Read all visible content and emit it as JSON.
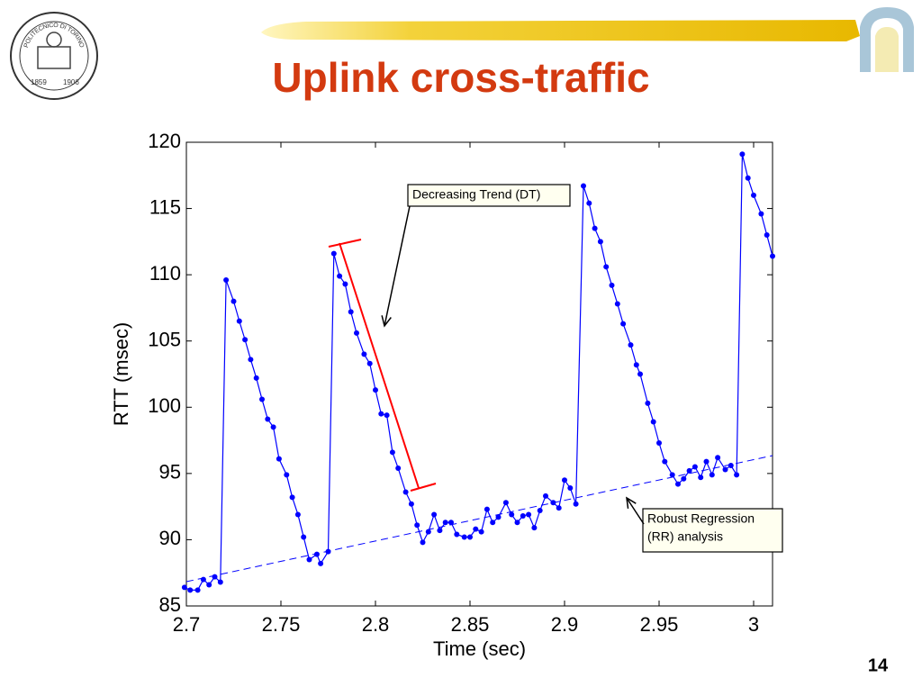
{
  "header": {
    "title": "Uplink cross-traffic",
    "logo_name": "POLITECNICO DI TORINO",
    "logo_years": [
      "1859",
      "1906"
    ]
  },
  "page_number": "14",
  "chart_data": {
    "type": "line",
    "xlabel": "Time (sec)",
    "ylabel": "RTT (msec)",
    "xlim": [
      2.7,
      3.01
    ],
    "ylim": [
      85,
      120
    ],
    "xticks": [
      2.7,
      2.75,
      2.8,
      2.85,
      2.9,
      2.95,
      3
    ],
    "yticks": [
      85,
      90,
      95,
      100,
      105,
      110,
      115,
      120
    ],
    "x": [
      2.699,
      2.702,
      2.706,
      2.709,
      2.712,
      2.715,
      2.718,
      2.721,
      2.725,
      2.728,
      2.731,
      2.734,
      2.737,
      2.74,
      2.743,
      2.746,
      2.749,
      2.753,
      2.756,
      2.759,
      2.762,
      2.765,
      2.769,
      2.771,
      2.775,
      2.778,
      2.781,
      2.784,
      2.787,
      2.79,
      2.794,
      2.797,
      2.8,
      2.803,
      2.806,
      2.809,
      2.812,
      2.816,
      2.819,
      2.822,
      2.825,
      2.828,
      2.831,
      2.834,
      2.837,
      2.84,
      2.843,
      2.847,
      2.85,
      2.853,
      2.856,
      2.859,
      2.862,
      2.865,
      2.869,
      2.872,
      2.875,
      2.878,
      2.881,
      2.884,
      2.887,
      2.89,
      2.894,
      2.897,
      2.9,
      2.903,
      2.906,
      2.91,
      2.913,
      2.916,
      2.919,
      2.922,
      2.925,
      2.928,
      2.931,
      2.935,
      2.938,
      2.94,
      2.944,
      2.947,
      2.95,
      2.953,
      2.957,
      2.96,
      2.963,
      2.966,
      2.969,
      2.972,
      2.975,
      2.978,
      2.981,
      2.985,
      2.988,
      2.991,
      2.994,
      2.997,
      3.0,
      3.004,
      3.007,
      3.01
    ],
    "series": [
      {
        "color": "#0000ff",
        "values": [
          86.4,
          86.2,
          86.2,
          87.0,
          86.6,
          87.2,
          86.8,
          109.6,
          108.0,
          106.5,
          105.1,
          103.6,
          102.2,
          100.6,
          99.1,
          98.5,
          96.1,
          94.9,
          93.2,
          91.9,
          90.2,
          88.5,
          88.9,
          88.2,
          89.1,
          111.6,
          109.9,
          109.3,
          107.2,
          105.6,
          104.0,
          103.3,
          101.3,
          99.5,
          99.4,
          96.6,
          95.4,
          93.6,
          92.7,
          91.1,
          89.8,
          90.6,
          91.9,
          90.7,
          91.3,
          91.3,
          90.4,
          90.2,
          90.2,
          90.8,
          90.6,
          92.3,
          91.3,
          91.7,
          92.8,
          91.9,
          91.3,
          91.8,
          91.9,
          90.9,
          92.2,
          93.3,
          92.8,
          92.4,
          94.5,
          93.9,
          92.7,
          116.7,
          115.4,
          113.5,
          112.5,
          110.6,
          109.2,
          107.8,
          106.3,
          104.7,
          103.2,
          102.5,
          100.3,
          98.9,
          97.3,
          95.9,
          94.9,
          94.2,
          94.6,
          95.2,
          95.5,
          94.7,
          95.9,
          94.9,
          96.2,
          95.3,
          95.6,
          94.9,
          119.1,
          117.3,
          116.0,
          114.6,
          113.0,
          111.4
        ]
      }
    ],
    "annotations": [
      {
        "lines": [
          "Decreasing Trend (DT)"
        ]
      },
      {
        "lines": [
          "Robust Regression",
          "(RR) analysis"
        ]
      }
    ]
  }
}
